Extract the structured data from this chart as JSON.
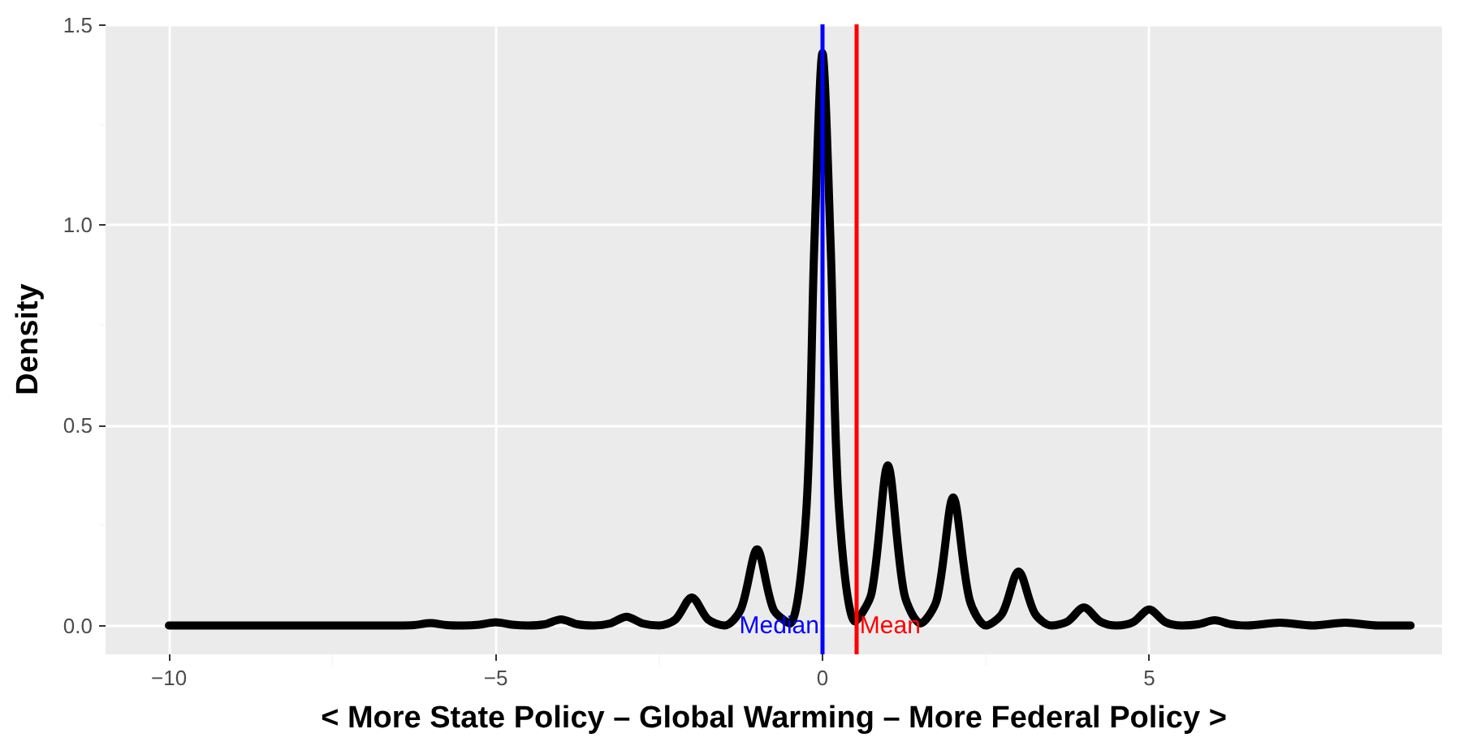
{
  "chart_data": {
    "type": "line",
    "xlabel": "< More State Policy – Global Warming – More Federal Policy >",
    "ylabel": "Density",
    "x": [
      -10,
      -8,
      -6.5,
      -6.25,
      -6,
      -5.75,
      -5.5,
      -5.25,
      -5,
      -4.75,
      -4.5,
      -4.25,
      -4,
      -3.75,
      -3.5,
      -3.25,
      -3,
      -2.75,
      -2.5,
      -2.25,
      -2,
      -1.75,
      -1.5,
      -1.25,
      -1,
      -0.75,
      -0.5,
      -0.25,
      -0.125,
      0,
      0.125,
      0.25,
      0.5,
      0.75,
      1,
      1.25,
      1.5,
      1.75,
      2,
      2.25,
      2.5,
      2.75,
      3,
      3.25,
      3.5,
      3.75,
      4,
      4.25,
      4.5,
      4.75,
      5,
      5.25,
      5.5,
      5.75,
      6,
      6.25,
      6.5,
      7,
      7.5,
      8,
      8.5,
      9
    ],
    "series": [
      {
        "color": "#000000",
        "values": [
          0,
          0,
          0,
          0.001,
          0.006,
          0.001,
          0,
          0.002,
          0.008,
          0.002,
          0,
          0.003,
          0.015,
          0.003,
          0,
          0.005,
          0.022,
          0.005,
          0,
          0.015,
          0.07,
          0.015,
          0,
          0.04,
          0.19,
          0.04,
          0.005,
          0.28,
          0.95,
          1.43,
          0.95,
          0.3,
          0.01,
          0.08,
          0.4,
          0.08,
          0.005,
          0.065,
          0.32,
          0.065,
          0,
          0.03,
          0.135,
          0.03,
          0,
          0.01,
          0.045,
          0.01,
          0,
          0.008,
          0.04,
          0.008,
          0,
          0.003,
          0.013,
          0.003,
          0,
          0.007,
          0,
          0.007,
          0,
          0
        ]
      }
    ],
    "xlim": [
      -10.97,
      9.48
    ],
    "xticks": [
      {
        "value": -10,
        "label": "−10"
      },
      {
        "value": -5,
        "label": "−5"
      },
      0,
      5
    ],
    "ylim": [
      -0.072,
      1.502
    ],
    "yticks": [
      {
        "value": 0,
        "label": "0.0"
      },
      {
        "value": 0.5,
        "label": "0.5"
      },
      {
        "value": 1,
        "label": "1.0"
      },
      {
        "value": 1.5,
        "label": "1.5"
      }
    ],
    "grid": true,
    "marker": "none",
    "line_style": "solid",
    "ref_lines": [
      {
        "axis": "x",
        "value": 0,
        "label": "Median",
        "color": "#0000ff"
      },
      {
        "axis": "x",
        "value": 0.52,
        "label": "Mean",
        "color": "#ff0000"
      }
    ]
  }
}
